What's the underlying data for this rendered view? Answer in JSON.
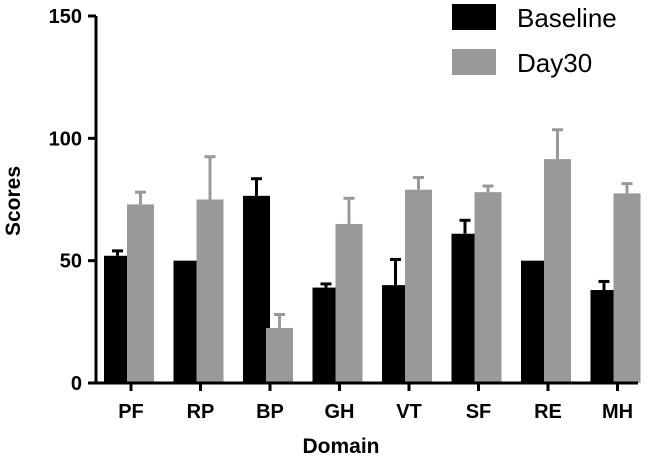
{
  "chart_data": {
    "type": "bar",
    "title": "",
    "xlabel": "Domain",
    "ylabel": "Scores",
    "ylim": [
      0,
      150
    ],
    "yticks": [
      0,
      50,
      100,
      150
    ],
    "categories": [
      "PF",
      "RP",
      "BP",
      "GH",
      "VT",
      "SF",
      "RE",
      "MH"
    ],
    "legend_position": "top-right",
    "series": [
      {
        "name": "Baseline",
        "color": "#000000",
        "values": [
          52,
          50,
          76.5,
          39,
          40,
          61,
          50,
          38
        ],
        "errors": [
          2,
          0,
          7,
          1.5,
          10.5,
          5.5,
          0,
          3.5
        ]
      },
      {
        "name": "Day30",
        "color": "#999999",
        "values": [
          73,
          75,
          22.5,
          65,
          79,
          78,
          91.5,
          77.5
        ],
        "errors": [
          5,
          17.5,
          5.5,
          10.5,
          5,
          2.5,
          12,
          4
        ]
      }
    ]
  }
}
